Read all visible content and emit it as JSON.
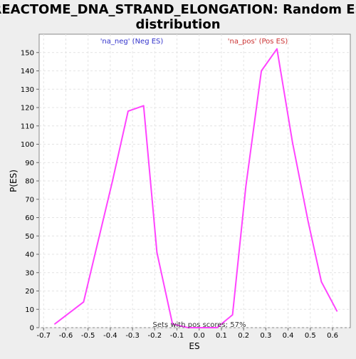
{
  "chart_data": {
    "type": "line",
    "title_lines": [
      "REACTOME_DNA_STRAND_ELONGATION: Random ES",
      "distribution"
    ],
    "xlabel": "ES",
    "ylabel": "P(ES)",
    "xlim": [
      -0.72,
      0.68
    ],
    "ylim": [
      0,
      160
    ],
    "x_ticks": [
      -0.7,
      -0.6,
      -0.5,
      -0.4,
      -0.3,
      -0.2,
      -0.1,
      0.0,
      0.1,
      0.2,
      0.3,
      0.4,
      0.5,
      0.6
    ],
    "x_tick_labels": [
      "-0.7",
      "-0.6",
      "-0.5",
      "-0.4",
      "-0.3",
      "-0.2",
      "-0.1",
      "0.0",
      "0.1",
      "0.2",
      "0.3",
      "0.4",
      "0.5",
      "0.6"
    ],
    "y_ticks": [
      0,
      10,
      20,
      30,
      40,
      50,
      60,
      70,
      80,
      90,
      100,
      110,
      120,
      130,
      140,
      150
    ],
    "y_tick_labels": [
      "0",
      "10",
      "20",
      "30",
      "40",
      "50",
      "60",
      "70",
      "80",
      "90",
      "100",
      "110",
      "120",
      "130",
      "140",
      "150"
    ],
    "grid": true,
    "series": [
      {
        "color": "#ff44ff",
        "x": [
          -0.65,
          -0.52,
          -0.39,
          -0.32,
          -0.25,
          -0.19,
          -0.12,
          -0.05,
          0.08,
          0.15,
          0.21,
          0.28,
          0.35,
          0.42,
          0.49,
          0.55,
          0.62
        ],
        "y": [
          2,
          14,
          80,
          118,
          121,
          41,
          2,
          0,
          0,
          7,
          77,
          140,
          152,
          101,
          58,
          25,
          9
        ]
      }
    ],
    "annotations": [
      {
        "text": "'na_neg' (Neg ES)",
        "color": "#3333cc"
      },
      {
        "text": "'na_pos' (Pos ES)",
        "color": "#cc3333"
      },
      {
        "text": "Sets with pos scores: 57%",
        "color": "#333333"
      }
    ]
  }
}
